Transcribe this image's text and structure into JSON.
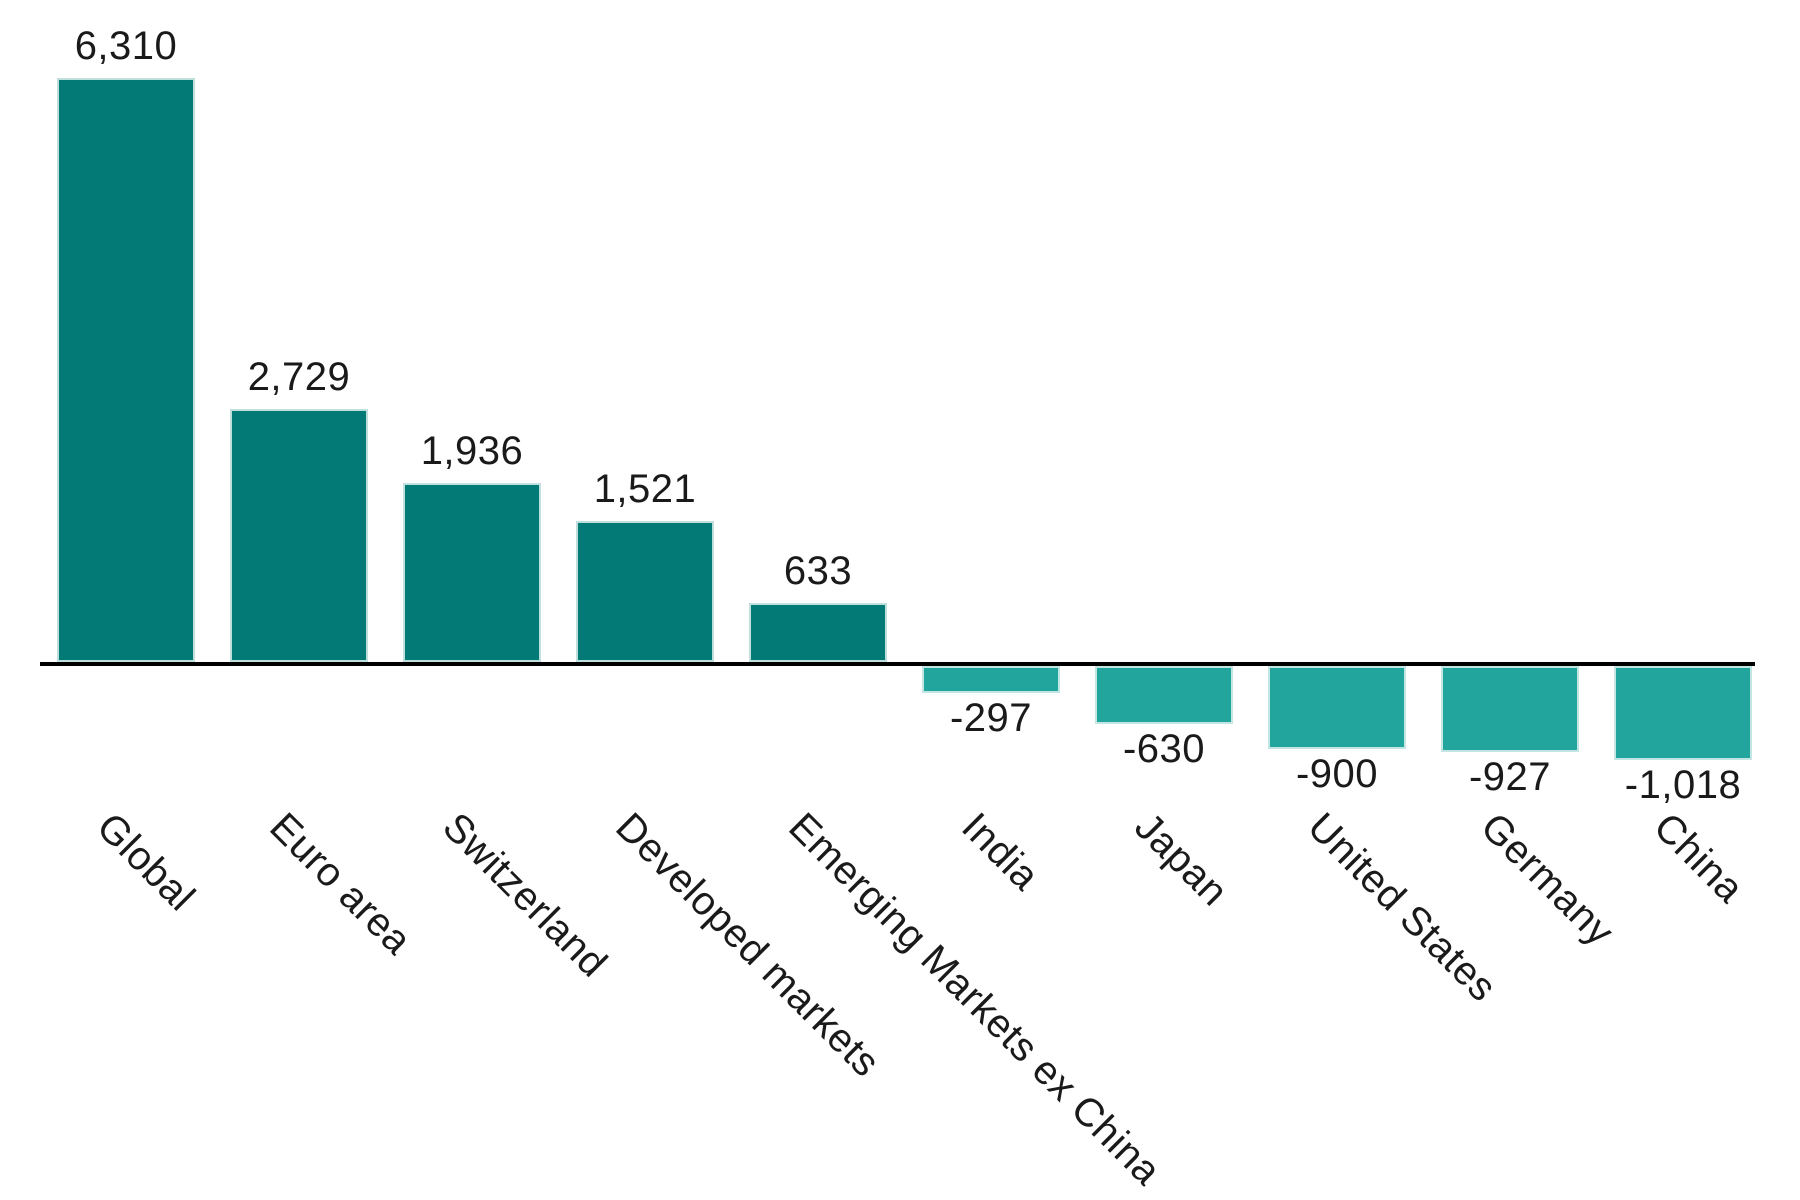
{
  "chart_data": {
    "type": "bar",
    "title": "",
    "xlabel": "",
    "ylabel": "",
    "legend_position": "none",
    "grid": false,
    "ylim": [
      -1100,
      6700
    ],
    "category_label_rotation_deg": 45,
    "categories": [
      "Global",
      "Euro area",
      "Switzerland",
      "Developed markets",
      "Emerging Markets ex China",
      "India",
      "Japan",
      "United States",
      "Germany",
      "China"
    ],
    "values": [
      6310,
      2729,
      1936,
      1521,
      633,
      -297,
      -630,
      -900,
      -927,
      -1018
    ],
    "value_labels": [
      "6,310",
      "2,729",
      "1,936",
      "1,521",
      "633",
      "-297",
      "-630",
      "-900",
      "-927",
      "-1,018"
    ],
    "colors": {
      "positive_bar": "#047a76",
      "negative_bar": "#21a59d",
      "axis": "#000000",
      "text": "#1a1a1a"
    }
  }
}
